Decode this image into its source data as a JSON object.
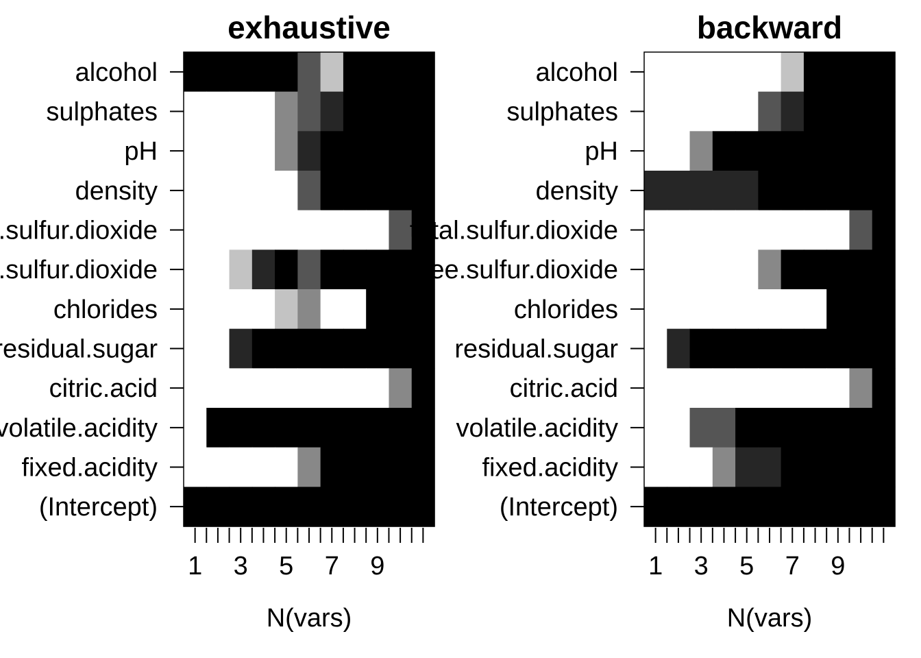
{
  "chart_data": [
    {
      "type": "heatmap",
      "title": "exhaustive",
      "xlabel": "N(vars)",
      "ylabel": "",
      "x": [
        1,
        2,
        3,
        4,
        5,
        6,
        7,
        8,
        9,
        10,
        11
      ],
      "x_tick_labels": [
        "1",
        "3",
        "5",
        "7",
        "9"
      ],
      "x_tick_label_values": [
        1,
        3,
        5,
        7,
        9
      ],
      "xlim": [
        0.5,
        11.5
      ],
      "variables": [
        "alcohol",
        "sulphates",
        "pH",
        "density",
        "total.sulfur.dioxide",
        "free.sulfur.dioxide",
        "chlorides",
        "residual.sugar",
        "citric.acid",
        "volatile.acidity",
        "fixed.acidity",
        "(Intercept)"
      ],
      "shade_scale": {
        "0": "#ffffff",
        "1": "#c3c3c3",
        "2": "#888888",
        "3": "#555555",
        "4": "#262626",
        "5": "#000000"
      },
      "matrix": [
        [
          5,
          5,
          5,
          5,
          5,
          3,
          1,
          5,
          5,
          5,
          5
        ],
        [
          0,
          0,
          0,
          0,
          2,
          3,
          4,
          5,
          5,
          5,
          5
        ],
        [
          0,
          0,
          0,
          0,
          2,
          4,
          5,
          5,
          5,
          5,
          5
        ],
        [
          0,
          0,
          0,
          0,
          0,
          3,
          5,
          5,
          5,
          5,
          5
        ],
        [
          0,
          0,
          0,
          0,
          0,
          0,
          0,
          0,
          0,
          3,
          5
        ],
        [
          0,
          0,
          1,
          4,
          5,
          3,
          5,
          5,
          5,
          5,
          5
        ],
        [
          0,
          0,
          0,
          0,
          1,
          2,
          0,
          0,
          5,
          5,
          5
        ],
        [
          0,
          0,
          4,
          5,
          5,
          5,
          5,
          5,
          5,
          5,
          5
        ],
        [
          0,
          0,
          0,
          0,
          0,
          0,
          0,
          0,
          0,
          2,
          5
        ],
        [
          0,
          5,
          5,
          5,
          5,
          5,
          5,
          5,
          5,
          5,
          5
        ],
        [
          0,
          0,
          0,
          0,
          0,
          2,
          5,
          5,
          5,
          5,
          5
        ],
        [
          5,
          5,
          5,
          5,
          5,
          5,
          5,
          5,
          5,
          5,
          5
        ]
      ]
    },
    {
      "type": "heatmap",
      "title": "backward",
      "xlabel": "N(vars)",
      "ylabel": "",
      "x": [
        1,
        2,
        3,
        4,
        5,
        6,
        7,
        8,
        9,
        10,
        11
      ],
      "x_tick_labels": [
        "1",
        "3",
        "5",
        "7",
        "9"
      ],
      "x_tick_label_values": [
        1,
        3,
        5,
        7,
        9
      ],
      "xlim": [
        0.5,
        11.5
      ],
      "variables": [
        "alcohol",
        "sulphates",
        "pH",
        "density",
        "total.sulfur.dioxide",
        "free.sulfur.dioxide",
        "chlorides",
        "residual.sugar",
        "citric.acid",
        "volatile.acidity",
        "fixed.acidity",
        "(Intercept)"
      ],
      "shade_scale": {
        "0": "#ffffff",
        "1": "#c3c3c3",
        "2": "#888888",
        "3": "#555555",
        "4": "#262626",
        "5": "#000000"
      },
      "matrix": [
        [
          0,
          0,
          0,
          0,
          0,
          0,
          1,
          5,
          5,
          5,
          5
        ],
        [
          0,
          0,
          0,
          0,
          0,
          3,
          4,
          5,
          5,
          5,
          5
        ],
        [
          0,
          0,
          2,
          5,
          5,
          5,
          5,
          5,
          5,
          5,
          5
        ],
        [
          4,
          4,
          4,
          4,
          4,
          5,
          5,
          5,
          5,
          5,
          5
        ],
        [
          0,
          0,
          0,
          0,
          0,
          0,
          0,
          0,
          0,
          3,
          5
        ],
        [
          0,
          0,
          0,
          0,
          0,
          2,
          5,
          5,
          5,
          5,
          5
        ],
        [
          0,
          0,
          0,
          0,
          0,
          0,
          0,
          0,
          5,
          5,
          5
        ],
        [
          0,
          4,
          5,
          5,
          5,
          5,
          5,
          5,
          5,
          5,
          5
        ],
        [
          0,
          0,
          0,
          0,
          0,
          0,
          0,
          0,
          0,
          2,
          5
        ],
        [
          0,
          0,
          3,
          3,
          5,
          5,
          5,
          5,
          5,
          5,
          5
        ],
        [
          0,
          0,
          0,
          2,
          4,
          4,
          5,
          5,
          5,
          5,
          5
        ],
        [
          5,
          5,
          5,
          5,
          5,
          5,
          5,
          5,
          5,
          5,
          5
        ]
      ]
    }
  ]
}
